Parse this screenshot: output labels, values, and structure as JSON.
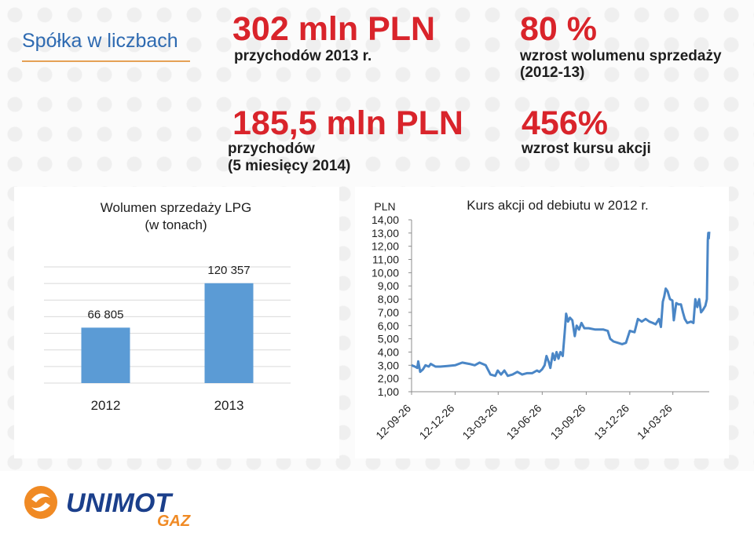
{
  "header": {
    "title": "Spółka w liczbach"
  },
  "kpis": [
    {
      "value": "302 mln PLN",
      "caption": "przychodów 2013 r."
    },
    {
      "value": "80 %",
      "caption": "wzrost wolumenu sprzedaży (2012-13)"
    },
    {
      "value": "185,5 mln PLN",
      "caption_line1": "przychodów",
      "caption_line2": "(5 miesięcy 2014)"
    },
    {
      "value": "456%",
      "caption": "wzrost kursu akcji"
    }
  ],
  "colors": {
    "accent_red": "#d9242b",
    "brand_blue": "#2e6ab1",
    "bar_blue": "#5b9bd5",
    "line_blue": "#4a86c6",
    "rule_orange": "#e5a155"
  },
  "chart_data": [
    {
      "type": "bar",
      "title_line1": "Wolumen sprzedaży LPG",
      "title_line2": "(w tonach)",
      "categories": [
        "2012",
        "2013"
      ],
      "values": [
        66805,
        120357
      ],
      "value_labels": [
        "66 805",
        "120 357"
      ],
      "ylim": [
        0,
        140000
      ],
      "grid": true
    },
    {
      "type": "line",
      "title": "Kurs akcji od debiutu w 2012 r.",
      "ylabel": "PLN",
      "ylim": [
        1,
        14
      ],
      "yticks": [
        "14,00",
        "13,00",
        "12,00",
        "11,00",
        "10,00",
        "9,00",
        "8,00",
        "7,00",
        "6,00",
        "5,00",
        "4,00",
        "3,00",
        "2,00",
        "1,00"
      ],
      "xticks": [
        "12-09-26",
        "12-12-26",
        "13-03-26",
        "13-06-26",
        "13-09-26",
        "13-12-26",
        "14-03-26"
      ],
      "series": [
        {
          "points": [
            [
              "2012-09-26",
              3.0
            ],
            [
              "2012-10-03",
              2.9
            ],
            [
              "2012-10-08",
              2.8
            ],
            [
              "2012-10-10",
              3.3
            ],
            [
              "2012-10-14",
              2.5
            ],
            [
              "2012-10-20",
              2.7
            ],
            [
              "2012-10-25",
              3.0
            ],
            [
              "2012-11-01",
              2.9
            ],
            [
              "2012-11-05",
              3.1
            ],
            [
              "2012-11-15",
              2.9
            ],
            [
              "2012-11-25",
              2.9
            ],
            [
              "2012-12-10",
              2.95
            ],
            [
              "2012-12-26",
              3.0
            ],
            [
              "2013-01-10",
              3.2
            ],
            [
              "2013-01-25",
              3.1
            ],
            [
              "2013-02-05",
              3.0
            ],
            [
              "2013-02-15",
              3.2
            ],
            [
              "2013-02-28",
              3.0
            ],
            [
              "2013-03-10",
              2.3
            ],
            [
              "2013-03-20",
              2.2
            ],
            [
              "2013-03-25",
              2.6
            ],
            [
              "2013-04-01",
              2.3
            ],
            [
              "2013-04-08",
              2.6
            ],
            [
              "2013-04-15",
              2.2
            ],
            [
              "2013-04-25",
              2.3
            ],
            [
              "2013-05-05",
              2.5
            ],
            [
              "2013-05-15",
              2.3
            ],
            [
              "2013-05-25",
              2.4
            ],
            [
              "2013-06-05",
              2.4
            ],
            [
              "2013-06-15",
              2.6
            ],
            [
              "2013-06-20",
              2.5
            ],
            [
              "2013-06-26",
              2.7
            ],
            [
              "2013-07-01",
              3.0
            ],
            [
              "2013-07-05",
              3.7
            ],
            [
              "2013-07-10",
              3.2
            ],
            [
              "2013-07-13",
              2.8
            ],
            [
              "2013-07-18",
              3.9
            ],
            [
              "2013-07-22",
              3.4
            ],
            [
              "2013-07-26",
              4.0
            ],
            [
              "2013-07-30",
              3.5
            ],
            [
              "2013-08-03",
              4.0
            ],
            [
              "2013-08-08",
              3.7
            ],
            [
              "2013-08-12",
              5.5
            ],
            [
              "2013-08-15",
              6.9
            ],
            [
              "2013-08-19",
              6.3
            ],
            [
              "2013-08-23",
              6.6
            ],
            [
              "2013-08-28",
              6.4
            ],
            [
              "2013-09-02",
              5.2
            ],
            [
              "2013-09-06",
              6.0
            ],
            [
              "2013-09-11",
              5.7
            ],
            [
              "2013-09-16",
              6.2
            ],
            [
              "2013-09-22",
              5.8
            ],
            [
              "2013-10-01",
              5.8
            ],
            [
              "2013-10-15",
              5.7
            ],
            [
              "2013-11-01",
              5.7
            ],
            [
              "2013-11-10",
              5.6
            ],
            [
              "2013-11-15",
              5.0
            ],
            [
              "2013-11-22",
              4.8
            ],
            [
              "2013-12-01",
              4.7
            ],
            [
              "2013-12-10",
              4.6
            ],
            [
              "2013-12-18",
              4.7
            ],
            [
              "2013-12-26",
              5.6
            ],
            [
              "2014-01-05",
              5.5
            ],
            [
              "2014-01-12",
              6.5
            ],
            [
              "2014-01-20",
              6.3
            ],
            [
              "2014-01-28",
              6.5
            ],
            [
              "2014-02-05",
              6.3
            ],
            [
              "2014-02-12",
              6.2
            ],
            [
              "2014-02-18",
              6.1
            ],
            [
              "2014-02-25",
              6.5
            ],
            [
              "2014-03-01",
              5.9
            ],
            [
              "2014-03-05",
              7.8
            ],
            [
              "2014-03-08",
              8.2
            ],
            [
              "2014-03-11",
              8.8
            ],
            [
              "2014-03-15",
              8.6
            ],
            [
              "2014-03-20",
              8.0
            ],
            [
              "2014-03-25",
              7.9
            ],
            [
              "2014-03-28",
              6.4
            ],
            [
              "2014-04-02",
              7.7
            ],
            [
              "2014-04-07",
              7.6
            ],
            [
              "2014-04-12",
              7.6
            ],
            [
              "2014-04-16",
              7.0
            ],
            [
              "2014-04-20",
              6.5
            ],
            [
              "2014-04-25",
              6.2
            ],
            [
              "2014-05-03",
              6.3
            ],
            [
              "2014-05-08",
              6.2
            ],
            [
              "2014-05-12",
              8.0
            ],
            [
              "2014-05-16",
              7.4
            ],
            [
              "2014-05-20",
              8.0
            ],
            [
              "2014-05-24",
              7.0
            ],
            [
              "2014-05-28",
              7.2
            ],
            [
              "2014-06-02",
              7.5
            ],
            [
              "2014-06-05",
              8.0
            ],
            [
              "2014-06-07",
              12.5
            ],
            [
              "2014-06-08",
              13.0
            ],
            [
              "2014-06-09",
              12.6
            ],
            [
              "2014-06-10",
              13.1
            ]
          ]
        }
      ]
    }
  ],
  "logo": {
    "name": "UNIMOT",
    "sub": "GAZ"
  }
}
